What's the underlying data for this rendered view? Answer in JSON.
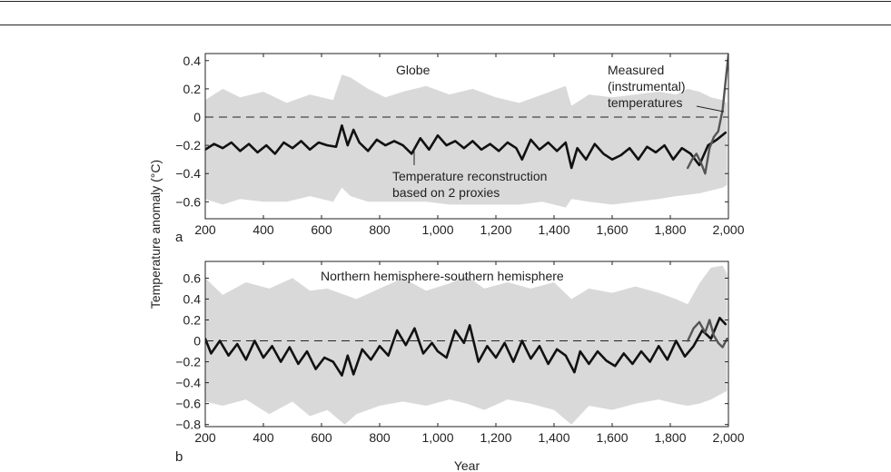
{
  "figure": {
    "ylabel": "Temperature anomaly (°C)",
    "xlabel": "Year"
  },
  "chart_data": [
    {
      "type": "line",
      "panel": "a",
      "title": "Globe",
      "xlim": [
        200,
        2000
      ],
      "ylim": [
        -0.72,
        0.45
      ],
      "x_ticks": [
        200,
        400,
        600,
        800,
        1000,
        1200,
        1400,
        1600,
        1800,
        2000
      ],
      "x_tick_labels": [
        "200",
        "400",
        "600",
        "800",
        "1,000",
        "1,200",
        "1,400",
        "1,600",
        "1,800",
        "2,000"
      ],
      "y_ticks": [
        0.4,
        0.2,
        0,
        -0.2,
        -0.4,
        -0.6
      ],
      "y_tick_labels": [
        "0.4",
        "0.2",
        "0",
        "−0.2",
        "−0.4",
        "−0.6"
      ],
      "zero_line": "dashed",
      "band": {
        "x": [
          200,
          260,
          320,
          400,
          480,
          560,
          640,
          670,
          700,
          760,
          820,
          880,
          960,
          1040,
          1120,
          1200,
          1280,
          1360,
          1440,
          1460,
          1520,
          1600,
          1680,
          1760,
          1820,
          1860,
          1900,
          1940,
          1980,
          1995
        ],
        "upper": [
          0.12,
          0.2,
          0.14,
          0.18,
          0.1,
          0.16,
          0.12,
          0.3,
          0.28,
          0.2,
          0.14,
          0.18,
          0.22,
          0.16,
          0.2,
          0.14,
          0.1,
          0.16,
          0.22,
          0.08,
          0.16,
          0.14,
          0.16,
          0.18,
          0.16,
          0.2,
          0.18,
          0.14,
          0.12,
          0.1
        ],
        "lower": [
          -0.58,
          -0.62,
          -0.58,
          -0.6,
          -0.6,
          -0.56,
          -0.6,
          -0.5,
          -0.56,
          -0.6,
          -0.6,
          -0.6,
          -0.6,
          -0.62,
          -0.62,
          -0.62,
          -0.62,
          -0.6,
          -0.64,
          -0.58,
          -0.6,
          -0.62,
          -0.6,
          -0.58,
          -0.56,
          -0.55,
          -0.54,
          -0.52,
          -0.5,
          -0.48
        ]
      },
      "series": [
        {
          "name": "Temperature reconstruction based on 2 proxies",
          "color": "#111111",
          "x": [
            200,
            230,
            260,
            290,
            320,
            350,
            380,
            410,
            440,
            470,
            500,
            530,
            560,
            590,
            620,
            650,
            670,
            690,
            710,
            730,
            760,
            790,
            820,
            850,
            880,
            910,
            940,
            970,
            1000,
            1030,
            1060,
            1090,
            1120,
            1150,
            1180,
            1210,
            1240,
            1270,
            1290,
            1320,
            1350,
            1380,
            1410,
            1440,
            1460,
            1480,
            1510,
            1540,
            1570,
            1600,
            1630,
            1660,
            1690,
            1720,
            1750,
            1780,
            1810,
            1840,
            1870,
            1900,
            1930,
            1960,
            1990
          ],
          "y": [
            -0.23,
            -0.19,
            -0.22,
            -0.18,
            -0.24,
            -0.19,
            -0.25,
            -0.2,
            -0.26,
            -0.18,
            -0.22,
            -0.17,
            -0.23,
            -0.18,
            -0.2,
            -0.21,
            -0.06,
            -0.2,
            -0.09,
            -0.18,
            -0.24,
            -0.16,
            -0.2,
            -0.17,
            -0.2,
            -0.26,
            -0.15,
            -0.23,
            -0.13,
            -0.2,
            -0.17,
            -0.22,
            -0.17,
            -0.23,
            -0.19,
            -0.24,
            -0.18,
            -0.22,
            -0.3,
            -0.16,
            -0.23,
            -0.18,
            -0.24,
            -0.18,
            -0.36,
            -0.22,
            -0.3,
            -0.19,
            -0.26,
            -0.3,
            -0.27,
            -0.22,
            -0.3,
            -0.21,
            -0.25,
            -0.2,
            -0.3,
            -0.22,
            -0.26,
            -0.34,
            -0.2,
            -0.16,
            -0.11
          ]
        },
        {
          "name": "Measured (instrumental) temperatures",
          "color": "#555555",
          "x": [
            1860,
            1875,
            1890,
            1905,
            1920,
            1935,
            1950,
            1965,
            1980,
            1990,
            2000
          ],
          "y": [
            -0.36,
            -0.3,
            -0.26,
            -0.32,
            -0.4,
            -0.22,
            -0.14,
            -0.1,
            0.05,
            0.25,
            0.44
          ]
        }
      ],
      "annotations": [
        "Measured (instrumental) temperatures",
        "Temperature reconstruction based on 2 proxies"
      ]
    },
    {
      "type": "line",
      "panel": "b",
      "title": "Northern hemisphere-southern hemisphere",
      "xlim": [
        200,
        2000
      ],
      "ylim": [
        -0.82,
        0.76
      ],
      "x_ticks": [
        200,
        400,
        600,
        800,
        1000,
        1200,
        1400,
        1600,
        1800,
        2000
      ],
      "x_tick_labels": [
        "200",
        "400",
        "600",
        "800",
        "1,000",
        "1,200",
        "1,400",
        "1,600",
        "1,800",
        "2,000"
      ],
      "y_ticks": [
        0.6,
        0.4,
        0.2,
        0,
        -0.2,
        -0.4,
        -0.6,
        -0.8
      ],
      "y_tick_labels": [
        "0.6",
        "0.4",
        "0.2",
        "0",
        "−0.2",
        "−0.4",
        "−0.6",
        "−0.8"
      ],
      "zero_line": "dashed",
      "band": {
        "x": [
          200,
          260,
          340,
          420,
          500,
          560,
          620,
          680,
          720,
          800,
          880,
          960,
          1040,
          1100,
          1160,
          1240,
          1320,
          1400,
          1460,
          1520,
          1600,
          1680,
          1760,
          1820,
          1860,
          1900,
          1940,
          1980,
          1995
        ],
        "upper": [
          0.6,
          0.44,
          0.56,
          0.5,
          0.6,
          0.48,
          0.5,
          0.44,
          0.4,
          0.5,
          0.6,
          0.48,
          0.55,
          0.62,
          0.5,
          0.56,
          0.5,
          0.56,
          0.4,
          0.5,
          0.46,
          0.52,
          0.46,
          0.4,
          0.35,
          0.55,
          0.7,
          0.72,
          0.64
        ],
        "lower": [
          -0.58,
          -0.62,
          -0.56,
          -0.7,
          -0.58,
          -0.72,
          -0.66,
          -0.8,
          -0.7,
          -0.62,
          -0.58,
          -0.62,
          -0.56,
          -0.6,
          -0.66,
          -0.56,
          -0.6,
          -0.66,
          -0.8,
          -0.62,
          -0.66,
          -0.6,
          -0.56,
          -0.6,
          -0.62,
          -0.6,
          -0.56,
          -0.5,
          -0.48
        ]
      },
      "series": [
        {
          "name": "Temperature reconstruction",
          "color": "#111111",
          "x": [
            200,
            220,
            250,
            280,
            310,
            340,
            370,
            400,
            430,
            460,
            490,
            520,
            550,
            580,
            610,
            640,
            670,
            690,
            710,
            740,
            770,
            800,
            830,
            860,
            890,
            920,
            950,
            980,
            1000,
            1030,
            1060,
            1090,
            1110,
            1140,
            1170,
            1200,
            1230,
            1260,
            1290,
            1320,
            1350,
            1380,
            1410,
            1440,
            1470,
            1490,
            1520,
            1550,
            1580,
            1610,
            1640,
            1670,
            1700,
            1730,
            1760,
            1790,
            1820,
            1850,
            1880,
            1910,
            1940,
            1970,
            1990
          ],
          "y": [
            0.02,
            -0.12,
            0.0,
            -0.14,
            -0.03,
            -0.18,
            0.0,
            -0.16,
            -0.05,
            -0.2,
            -0.06,
            -0.22,
            -0.1,
            -0.27,
            -0.16,
            -0.2,
            -0.33,
            -0.14,
            -0.32,
            -0.08,
            -0.18,
            -0.05,
            -0.14,
            0.1,
            -0.04,
            0.12,
            -0.12,
            -0.02,
            -0.1,
            -0.16,
            0.1,
            -0.02,
            0.15,
            -0.2,
            -0.05,
            -0.16,
            -0.02,
            -0.2,
            0.0,
            -0.17,
            -0.05,
            -0.22,
            -0.08,
            -0.14,
            -0.3,
            -0.1,
            -0.22,
            -0.1,
            -0.19,
            -0.24,
            -0.12,
            -0.22,
            -0.1,
            -0.2,
            -0.05,
            -0.18,
            0.0,
            -0.15,
            -0.05,
            0.1,
            0.02,
            0.22,
            0.16
          ]
        },
        {
          "name": "Measured (instrumental) temperatures",
          "color": "#555555",
          "x": [
            1860,
            1880,
            1900,
            1920,
            1935,
            1950,
            1965,
            1980,
            1995
          ],
          "y": [
            0.0,
            0.12,
            0.18,
            0.08,
            0.2,
            0.05,
            -0.02,
            -0.06,
            0.02
          ]
        }
      ],
      "annotations": []
    }
  ]
}
